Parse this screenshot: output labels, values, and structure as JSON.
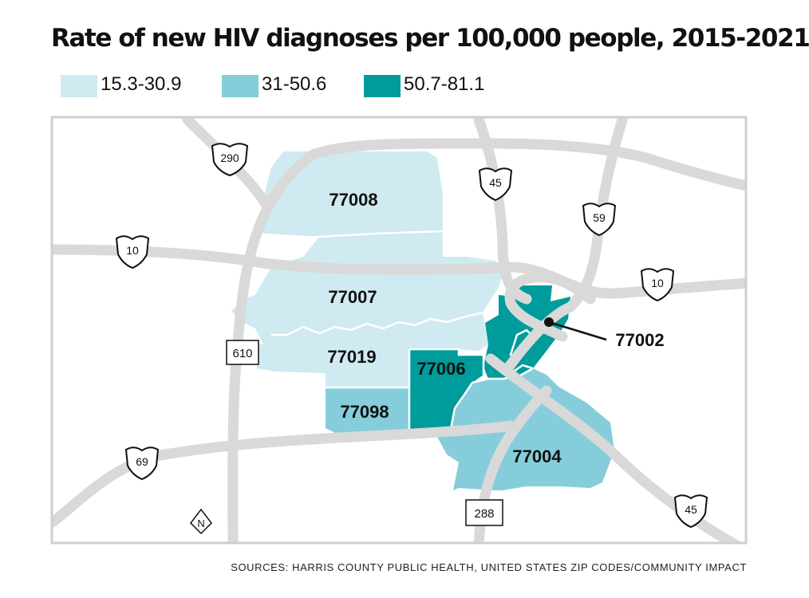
{
  "title": "Rate of new HIV diagnoses per 100,000 people, 2015-2021",
  "legend": [
    {
      "label": "15.3-30.9",
      "color": "#cfeaf0"
    },
    {
      "label": "31-50.6",
      "color": "#86cddb"
    },
    {
      "label": "50.7-81.1",
      "color": "#009b9b"
    }
  ],
  "zip_codes": [
    {
      "code": "77008",
      "rate_range": "15.3-30.9"
    },
    {
      "code": "77007",
      "rate_range": "15.3-30.9"
    },
    {
      "code": "77019",
      "rate_range": "15.3-30.9"
    },
    {
      "code": "77098",
      "rate_range": "31-50.6"
    },
    {
      "code": "77006",
      "rate_range": "50.7-81.1"
    },
    {
      "code": "77002",
      "rate_range": "50.7-81.1"
    },
    {
      "code": "77004",
      "rate_range": "31-50.6"
    }
  ],
  "highways": {
    "i290": "290",
    "i45_north": "45",
    "i59": "59",
    "i10_west": "10",
    "i10_east": "10",
    "loop610": "610",
    "i69": "69",
    "sh288": "288",
    "i45_south": "45"
  },
  "north_arrow": "N",
  "sources": "SOURCES: HARRIS COUNTY PUBLIC HEALTH, UNITED STATES ZIP CODES/COMMUNITY IMPACT",
  "colors": {
    "road": "#d9d9d9",
    "frame": "#cfcfcf",
    "boundary": "#ffffff"
  }
}
